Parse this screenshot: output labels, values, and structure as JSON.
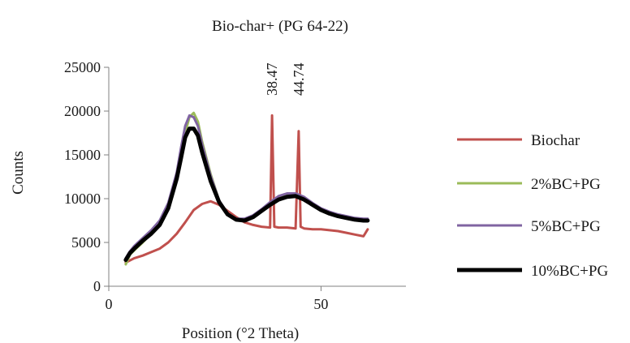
{
  "chart_data": {
    "type": "line",
    "title": "Bio-char+ (PG 64-22)",
    "xlabel": "Position (°2 Theta)",
    "ylabel": "Counts",
    "xlim": [
      0,
      70
    ],
    "ylim": [
      0,
      25000
    ],
    "xticks": [
      0,
      50
    ],
    "yticks": [
      0,
      5000,
      10000,
      15000,
      20000,
      25000
    ],
    "grid": false,
    "legend_position": "right",
    "annotations": [
      {
        "text": "38.47",
        "x": 38.47,
        "y": 19500
      },
      {
        "text": "44.74",
        "x": 44.74,
        "y": 17700
      }
    ],
    "series": [
      {
        "name": "Biochar",
        "color": "#c0504d",
        "x": [
          4,
          6,
          8,
          10,
          12,
          14,
          16,
          18,
          20,
          22,
          24,
          26,
          28,
          30,
          32,
          34,
          36,
          38,
          38.47,
          39,
          40,
          42,
          44,
          44.74,
          45.2,
          46,
          48,
          50,
          52,
          54,
          56,
          58,
          60,
          61
        ],
        "y": [
          2700,
          3200,
          3500,
          3900,
          4300,
          5000,
          6000,
          7300,
          8700,
          9400,
          9700,
          9300,
          8600,
          7900,
          7300,
          7000,
          6800,
          6700,
          19500,
          6800,
          6700,
          6700,
          6600,
          17700,
          6800,
          6600,
          6500,
          6500,
          6400,
          6300,
          6100,
          5900,
          5700,
          6500
        ]
      },
      {
        "name": "2%BC+PG",
        "color": "#9bbb59",
        "x": [
          4,
          5,
          6,
          8,
          10,
          12,
          14,
          16,
          17,
          18,
          19,
          20,
          21,
          22,
          24,
          26,
          28,
          30,
          32,
          34,
          36,
          38,
          40,
          42,
          44,
          46,
          48,
          50,
          52,
          54,
          56,
          58,
          60,
          61
        ],
        "y": [
          2500,
          3600,
          4100,
          5000,
          6000,
          7100,
          9000,
          12500,
          15200,
          17500,
          19300,
          19800,
          18800,
          16500,
          12800,
          9800,
          8200,
          7600,
          7600,
          8000,
          8700,
          9500,
          10200,
          10500,
          10500,
          10100,
          9400,
          8800,
          8400,
          8100,
          7900,
          7700,
          7600,
          7600
        ]
      },
      {
        "name": "5%BC+PG",
        "color": "#8064a2",
        "x": [
          4,
          5,
          6,
          8,
          10,
          12,
          14,
          16,
          17,
          18,
          19,
          20,
          21,
          22,
          24,
          26,
          28,
          30,
          32,
          34,
          36,
          38,
          40,
          42,
          44,
          46,
          48,
          50,
          52,
          54,
          56,
          58,
          60,
          61
        ],
        "y": [
          3200,
          4000,
          4600,
          5500,
          6400,
          7500,
          9500,
          13000,
          15800,
          18300,
          19500,
          19300,
          18300,
          16200,
          12600,
          9800,
          8300,
          7700,
          7700,
          8100,
          8800,
          9600,
          10300,
          10600,
          10600,
          10200,
          9500,
          8900,
          8500,
          8200,
          8000,
          7800,
          7700,
          7700
        ]
      },
      {
        "name": "10%BC+PG",
        "color": "#000000",
        "x": [
          4,
          5,
          6,
          8,
          10,
          12,
          14,
          16,
          17,
          18,
          19,
          20,
          21,
          22,
          24,
          26,
          28,
          30,
          32,
          34,
          36,
          38,
          40,
          42,
          44,
          46,
          48,
          50,
          52,
          54,
          56,
          58,
          60,
          61
        ],
        "y": [
          3000,
          3800,
          4300,
          5200,
          6000,
          7000,
          8900,
          12300,
          14600,
          17000,
          18000,
          18000,
          17200,
          15300,
          12000,
          9600,
          8200,
          7600,
          7500,
          7900,
          8600,
          9300,
          9900,
          10200,
          10300,
          9900,
          9300,
          8700,
          8300,
          8000,
          7800,
          7600,
          7500,
          7500
        ]
      }
    ]
  }
}
